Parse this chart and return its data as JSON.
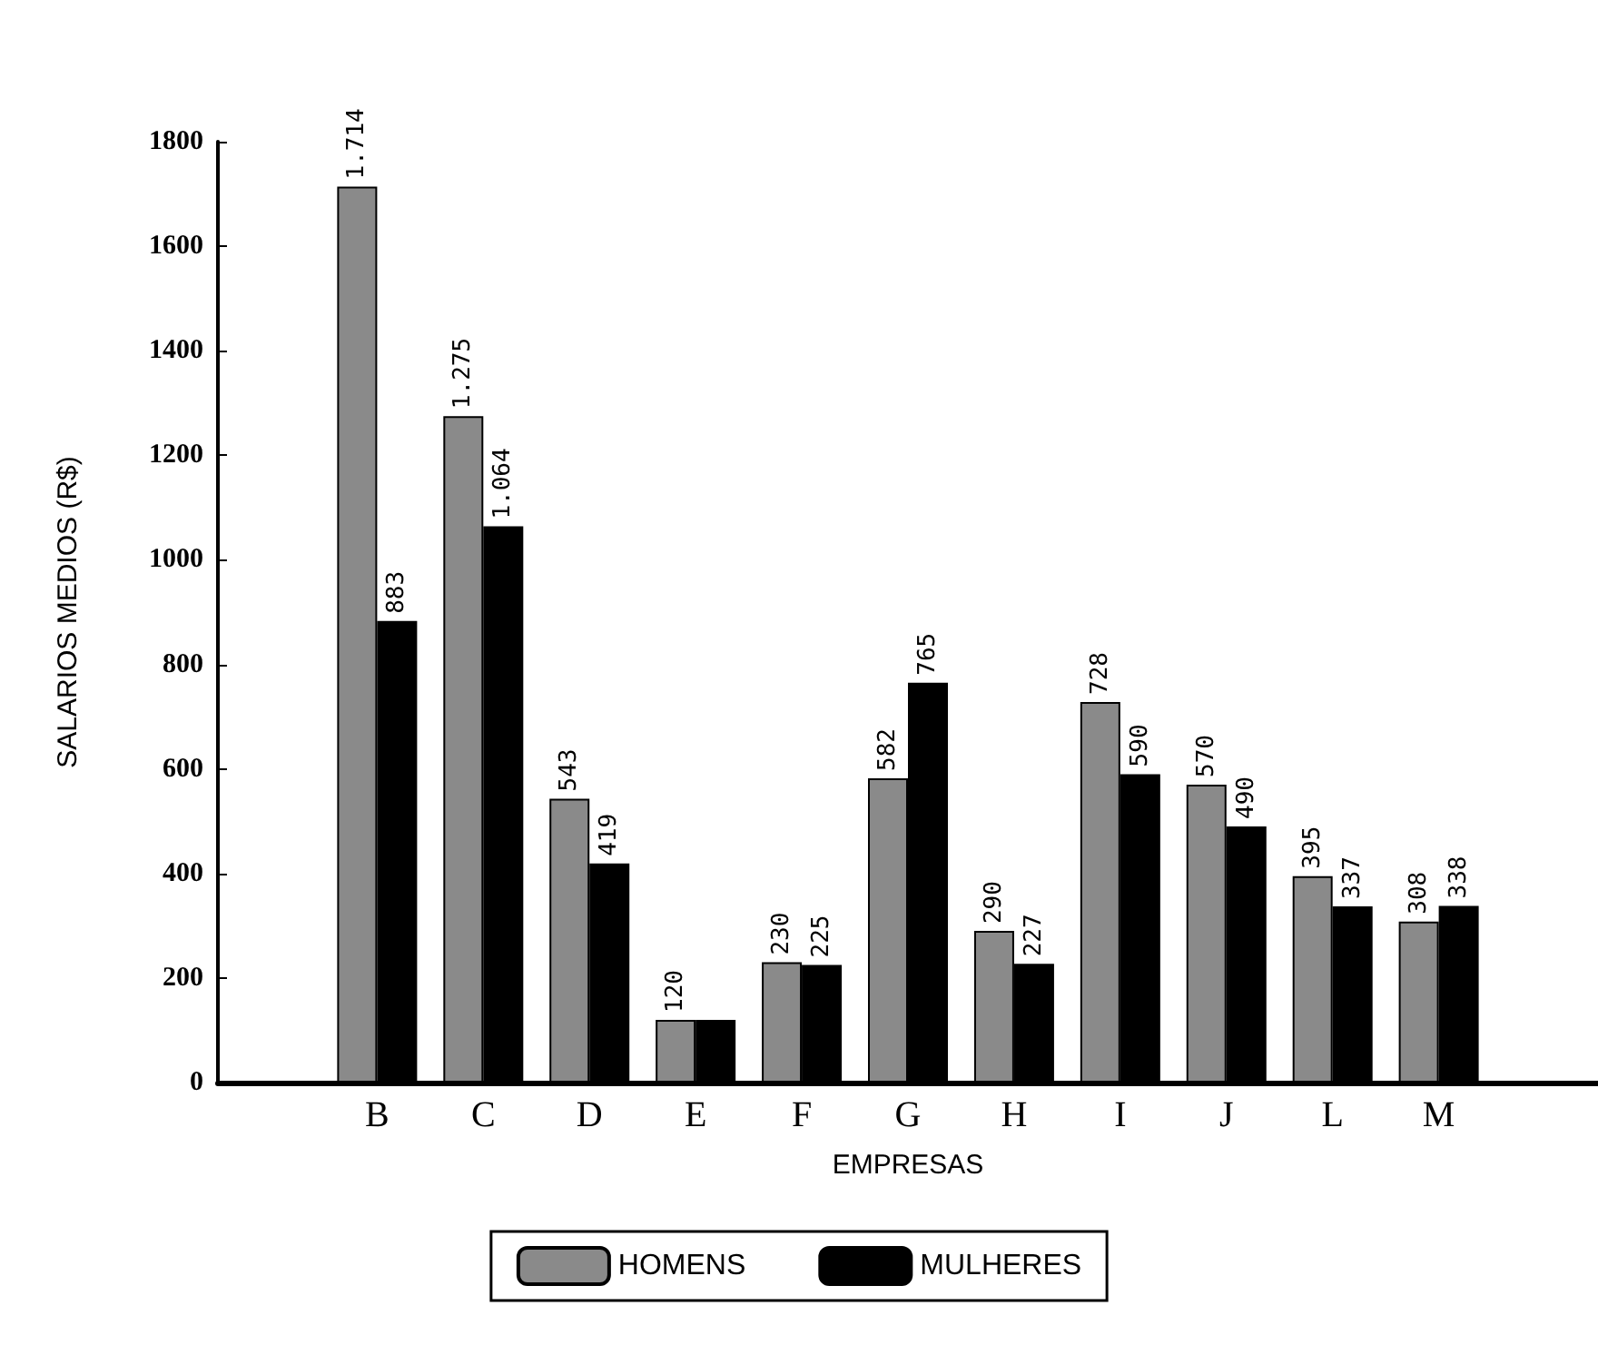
{
  "chart_data": {
    "type": "bar",
    "xlabel": "EMPRESAS",
    "ylabel": "SALARIOS MEDIOS (R$)",
    "categories": [
      null,
      "B",
      "C",
      "D",
      "E",
      "F",
      "G",
      "H",
      "I",
      "J",
      "L",
      "M",
      null
    ],
    "series": [
      {
        "name": "HOMENS",
        "color": "#8a8a8a",
        "values": [
          null,
          1714,
          1275,
          543,
          120,
          230,
          582,
          290,
          728,
          570,
          395,
          308,
          null
        ],
        "value_labels": [
          null,
          "1.714",
          "1.275",
          "543",
          "120",
          "230",
          "582",
          "290",
          "728",
          "570",
          "395",
          "308",
          null
        ]
      },
      {
        "name": "MULHERES",
        "color": "#000000",
        "values": [
          null,
          883,
          1064,
          419,
          120,
          225,
          765,
          227,
          590,
          490,
          337,
          338,
          null
        ],
        "value_labels": [
          null,
          "883",
          "1.064",
          "419",
          null,
          "225",
          "765",
          "227",
          "590",
          "490",
          "337",
          "338",
          null
        ]
      }
    ],
    "ylim": [
      0,
      1800
    ],
    "yticks": [
      0,
      200,
      400,
      600,
      800,
      1000,
      1200,
      1400,
      1600,
      1800
    ],
    "grid": false,
    "legend": "bottom"
  }
}
